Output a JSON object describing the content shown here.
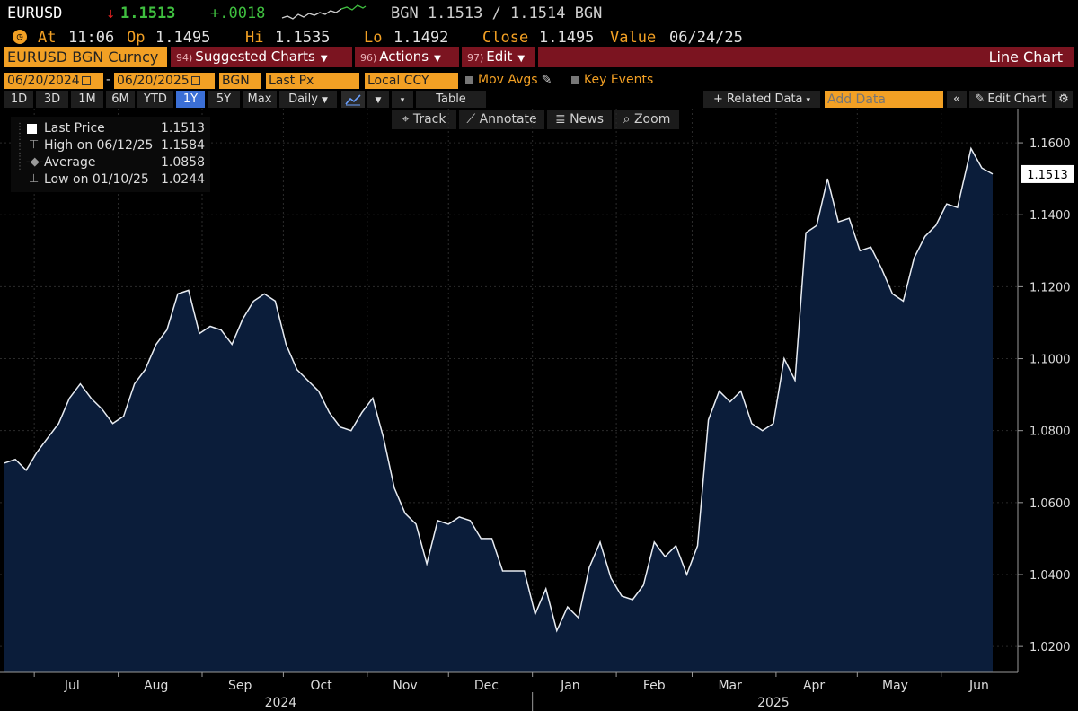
{
  "header": {
    "ticker": "EURUSD",
    "arrow": "↓",
    "last": "1.1513",
    "change": "+.0018",
    "quote": "BGN 1.1513 / 1.1514 BGN"
  },
  "quote_line": {
    "at_label": "At",
    "at_time": "11:06",
    "op_label": "Op",
    "op": "1.1495",
    "hi_label": "Hi",
    "hi": "1.1535",
    "lo_label": "Lo",
    "lo": "1.1492",
    "close_label": "Close",
    "close": "1.1495",
    "value_label": "Value",
    "value": "06/24/25"
  },
  "toolbar": {
    "security": "EURUSD BGN Curncy",
    "suggested_num": "94)",
    "suggested": "Suggested Charts",
    "actions_num": "96)",
    "actions": "Actions",
    "edit_num": "97)",
    "edit": "Edit",
    "chart_type": "Line Chart"
  },
  "params": {
    "start_date": "06/20/2024",
    "end_date": "06/20/2025",
    "source": "BGN",
    "field": "Last Px",
    "currency": "Local CCY",
    "mov_avgs": "Mov Avgs",
    "key_events": "Key Events"
  },
  "periods": [
    "1D",
    "3D",
    "1M",
    "6M",
    "YTD",
    "1Y",
    "5Y",
    "Max"
  ],
  "selected_period": "1Y",
  "frequency": "Daily",
  "table_label": "Table",
  "related_data": "+ Related Data",
  "add_data_placeholder": "Add Data",
  "edit_chart": "Edit Chart",
  "tools": {
    "track": "Track",
    "annotate": "Annotate",
    "news": "News",
    "zoom": "Zoom"
  },
  "legend": [
    {
      "label": "Last Price",
      "value": "1.1513"
    },
    {
      "label": "High on 06/12/25",
      "value": "1.1584"
    },
    {
      "label": "Average",
      "value": "1.0858"
    },
    {
      "label": "Low on 01/10/25",
      "value": "1.0244"
    }
  ],
  "colors": {
    "background": "#000000",
    "line": "#e8ecf2",
    "fill": "#0b1d3a",
    "accent_orange": "#f2a024",
    "bar_red": "#7b1420",
    "selected_blue": "#3b6fd6",
    "up_green": "#3fbf3f",
    "down_red": "#e02020"
  },
  "chart_data": {
    "type": "area",
    "ylim": [
      1.0128,
      1.1695
    ],
    "yticks": [
      1.02,
      1.04,
      1.06,
      1.08,
      1.1,
      1.12,
      1.14,
      1.16
    ],
    "ytick_labels": [
      "1.0200",
      "1.0400",
      "1.0600",
      "1.0800",
      "1.1000",
      "1.1200",
      "1.1400",
      "1.1600"
    ],
    "x_months": [
      {
        "label": "Jul",
        "date": "2024-07-15"
      },
      {
        "label": "Aug",
        "date": "2024-08-15"
      },
      {
        "label": "Sep",
        "date": "2024-09-15"
      },
      {
        "label": "Oct",
        "date": "2024-10-15"
      },
      {
        "label": "Nov",
        "date": "2024-11-15"
      },
      {
        "label": "Dec",
        "date": "2024-12-15"
      },
      {
        "label": "Jan",
        "date": "2025-01-15"
      },
      {
        "label": "Feb",
        "date": "2025-02-15"
      },
      {
        "label": "Mar",
        "date": "2025-03-15"
      },
      {
        "label": "Apr",
        "date": "2025-04-15"
      },
      {
        "label": "May",
        "date": "2025-05-15"
      },
      {
        "label": "Jun",
        "date": "2025-06-15"
      }
    ],
    "x_years": [
      {
        "label": "2024",
        "date": "2024-09-30"
      },
      {
        "label": "2025",
        "date": "2025-03-31"
      }
    ],
    "last_price_label": "1.1513",
    "grid": true,
    "series": [
      {
        "name": "Last Price",
        "points": [
          [
            "2024-06-20",
            1.071
          ],
          [
            "2024-06-24",
            1.072
          ],
          [
            "2024-06-28",
            1.069
          ],
          [
            "2024-07-02",
            1.074
          ],
          [
            "2024-07-06",
            1.078
          ],
          [
            "2024-07-10",
            1.082
          ],
          [
            "2024-07-14",
            1.089
          ],
          [
            "2024-07-18",
            1.093
          ],
          [
            "2024-07-22",
            1.089
          ],
          [
            "2024-07-26",
            1.086
          ],
          [
            "2024-07-30",
            1.082
          ],
          [
            "2024-08-03",
            1.084
          ],
          [
            "2024-08-07",
            1.093
          ],
          [
            "2024-08-11",
            1.097
          ],
          [
            "2024-08-15",
            1.104
          ],
          [
            "2024-08-19",
            1.108
          ],
          [
            "2024-08-23",
            1.118
          ],
          [
            "2024-08-27",
            1.119
          ],
          [
            "2024-08-31",
            1.107
          ],
          [
            "2024-09-04",
            1.109
          ],
          [
            "2024-09-08",
            1.108
          ],
          [
            "2024-09-12",
            1.104
          ],
          [
            "2024-09-16",
            1.111
          ],
          [
            "2024-09-20",
            1.116
          ],
          [
            "2024-09-24",
            1.118
          ],
          [
            "2024-09-28",
            1.116
          ],
          [
            "2024-10-02",
            1.104
          ],
          [
            "2024-10-06",
            1.097
          ],
          [
            "2024-10-10",
            1.094
          ],
          [
            "2024-10-14",
            1.091
          ],
          [
            "2024-10-18",
            1.085
          ],
          [
            "2024-10-22",
            1.081
          ],
          [
            "2024-10-26",
            1.08
          ],
          [
            "2024-10-30",
            1.085
          ],
          [
            "2024-11-03",
            1.089
          ],
          [
            "2024-11-07",
            1.078
          ],
          [
            "2024-11-11",
            1.064
          ],
          [
            "2024-11-15",
            1.057
          ],
          [
            "2024-11-19",
            1.054
          ],
          [
            "2024-11-23",
            1.043
          ],
          [
            "2024-11-27",
            1.055
          ],
          [
            "2024-12-01",
            1.054
          ],
          [
            "2024-12-05",
            1.056
          ],
          [
            "2024-12-09",
            1.055
          ],
          [
            "2024-12-13",
            1.05
          ],
          [
            "2024-12-17",
            1.05
          ],
          [
            "2024-12-21",
            1.041
          ],
          [
            "2024-12-25",
            1.041
          ],
          [
            "2024-12-29",
            1.041
          ],
          [
            "2025-01-02",
            1.029
          ],
          [
            "2025-01-06",
            1.036
          ],
          [
            "2025-01-10",
            1.0244
          ],
          [
            "2025-01-14",
            1.031
          ],
          [
            "2025-01-18",
            1.028
          ],
          [
            "2025-01-22",
            1.042
          ],
          [
            "2025-01-26",
            1.049
          ],
          [
            "2025-01-30",
            1.039
          ],
          [
            "2025-02-03",
            1.034
          ],
          [
            "2025-02-07",
            1.033
          ],
          [
            "2025-02-11",
            1.037
          ],
          [
            "2025-02-15",
            1.049
          ],
          [
            "2025-02-19",
            1.045
          ],
          [
            "2025-02-23",
            1.048
          ],
          [
            "2025-02-27",
            1.04
          ],
          [
            "2025-03-03",
            1.048
          ],
          [
            "2025-03-07",
            1.083
          ],
          [
            "2025-03-11",
            1.091
          ],
          [
            "2025-03-15",
            1.088
          ],
          [
            "2025-03-19",
            1.091
          ],
          [
            "2025-03-23",
            1.082
          ],
          [
            "2025-03-27",
            1.08
          ],
          [
            "2025-03-31",
            1.082
          ],
          [
            "2025-04-04",
            1.1
          ],
          [
            "2025-04-08",
            1.094
          ],
          [
            "2025-04-12",
            1.135
          ],
          [
            "2025-04-16",
            1.137
          ],
          [
            "2025-04-20",
            1.15
          ],
          [
            "2025-04-24",
            1.138
          ],
          [
            "2025-04-28",
            1.139
          ],
          [
            "2025-05-02",
            1.13
          ],
          [
            "2025-05-06",
            1.131
          ],
          [
            "2025-05-10",
            1.125
          ],
          [
            "2025-05-14",
            1.118
          ],
          [
            "2025-05-18",
            1.116
          ],
          [
            "2025-05-22",
            1.128
          ],
          [
            "2025-05-26",
            1.134
          ],
          [
            "2025-05-30",
            1.137
          ],
          [
            "2025-06-03",
            1.143
          ],
          [
            "2025-06-07",
            1.142
          ],
          [
            "2025-06-12",
            1.1584
          ],
          [
            "2025-06-16",
            1.153
          ],
          [
            "2025-06-20",
            1.1513
          ]
        ]
      }
    ]
  }
}
